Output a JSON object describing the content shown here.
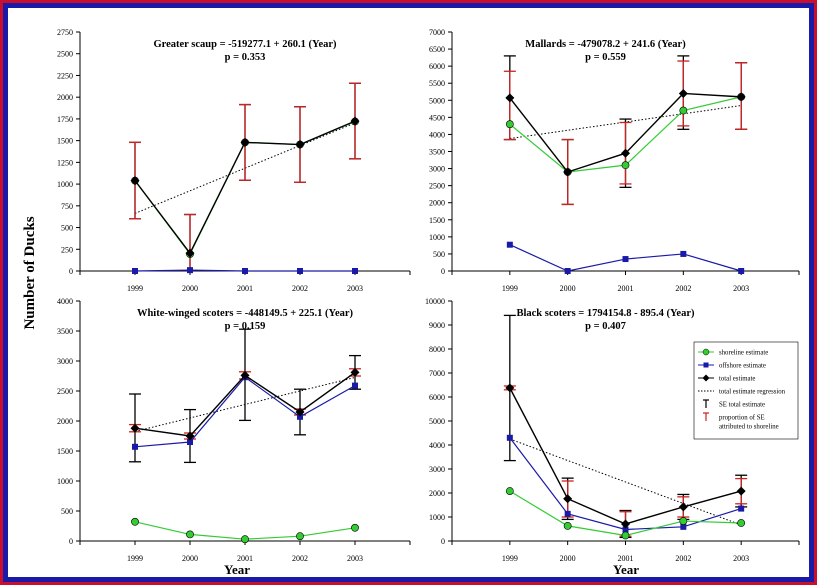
{
  "figure": {
    "ylabel": "Number of Ducks",
    "xlabel_left": "Year",
    "xlabel_right": "Year"
  },
  "legend": {
    "items": [
      {
        "label": "shoreline estimate",
        "kind": "marker-circle",
        "color": "#33cc33"
      },
      {
        "label": "offshore estimate",
        "kind": "marker-square",
        "color": "#1a1aa8"
      },
      {
        "label": "total estimate",
        "kind": "marker-diamond",
        "color": "#000000"
      },
      {
        "label": "total estimate regression",
        "kind": "dotted-line",
        "color": "#000000"
      },
      {
        "label": "SE total estimate",
        "kind": "tee",
        "color": "#000000"
      },
      {
        "label": "proportion of SE",
        "label2": "attributed to shoreline",
        "kind": "tee",
        "color": "#cc2222"
      }
    ]
  },
  "colors": {
    "shoreline": "#33cc33",
    "offshore": "#1a1aa8",
    "total": "#000000",
    "se_shoreline": "#cc2222",
    "se_total": "#000000",
    "frame": "#c8102e",
    "background": "#1a1aa8"
  },
  "chart_data": [
    {
      "type": "line",
      "title": "Greater scaup = -519277.1 + 260.1 (Year)",
      "subtitle": "p = 0.353",
      "x": [
        1999,
        2000,
        2001,
        2002,
        2003
      ],
      "xticks": [
        "1999",
        "2000",
        "2001",
        "2002",
        "2003"
      ],
      "ylim": [
        0,
        2750
      ],
      "yticks": [
        0,
        250,
        500,
        750,
        1000,
        1250,
        1500,
        1750,
        2000,
        2250,
        2500,
        2750
      ],
      "series": [
        {
          "key": "shoreline",
          "values": [
            1040,
            195,
            1480,
            1455,
            1720
          ]
        },
        {
          "key": "offshore",
          "values": [
            0,
            10,
            0,
            0,
            0
          ]
        },
        {
          "key": "total",
          "values": [
            1040,
            205,
            1480,
            1455,
            1725
          ]
        }
      ],
      "se_total": [
        [
          600,
          1480
        ],
        [
          -240,
          650
        ],
        [
          1045,
          1915
        ],
        [
          1020,
          1890
        ],
        [
          1290,
          2160
        ]
      ],
      "se_shoreline": [
        [
          600,
          1480
        ],
        [
          -240,
          650
        ],
        [
          1045,
          1915
        ],
        [
          1020,
          1890
        ],
        [
          1290,
          2160
        ]
      ],
      "regression": {
        "intercept": -519277.1,
        "slope": 260.1
      }
    },
    {
      "type": "line",
      "title": "Mallards = -479078.2 + 241.6 (Year)",
      "subtitle": "p = 0.559",
      "x": [
        1999,
        2000,
        2001,
        2002,
        2003
      ],
      "xticks": [
        "1999",
        "2000",
        "2001",
        "2002",
        "2003"
      ],
      "ylim": [
        0,
        7000
      ],
      "yticks": [
        0,
        500,
        1000,
        1500,
        2000,
        2500,
        3000,
        3500,
        4000,
        4500,
        5000,
        5500,
        6000,
        6500,
        7000
      ],
      "series": [
        {
          "key": "shoreline",
          "values": [
            4300,
            2900,
            3100,
            4700,
            5100
          ]
        },
        {
          "key": "offshore",
          "values": [
            770,
            0,
            350,
            500,
            0
          ]
        },
        {
          "key": "total",
          "values": [
            5070,
            2900,
            3450,
            5200,
            5100
          ]
        }
      ],
      "se_total": [
        [
          3850,
          6300
        ],
        [
          1950,
          3850
        ],
        [
          2450,
          4450
        ],
        [
          4150,
          6300
        ],
        [
          4150,
          6100
        ]
      ],
      "se_shoreline": [
        [
          3850,
          5850
        ],
        [
          1950,
          3850
        ],
        [
          2550,
          4350
        ],
        [
          4250,
          6150
        ],
        [
          4150,
          6100
        ]
      ],
      "regression": {
        "intercept": -479078.2,
        "slope": 241.6
      }
    },
    {
      "type": "line",
      "title": "White-winged scoters = -448149.5 + 225.1 (Year)",
      "subtitle": "p = 0.159",
      "x": [
        1999,
        2000,
        2001,
        2002,
        2003
      ],
      "xticks": [
        "1999",
        "2000",
        "2001",
        "2002",
        "2003"
      ],
      "ylim": [
        0,
        4000
      ],
      "yticks": [
        0,
        500,
        1000,
        1500,
        2000,
        2500,
        3000,
        3500,
        4000
      ],
      "series": [
        {
          "key": "shoreline",
          "values": [
            320,
            110,
            30,
            80,
            220
          ]
        },
        {
          "key": "offshore",
          "values": [
            1570,
            1650,
            2730,
            2070,
            2590
          ]
        },
        {
          "key": "total",
          "values": [
            1880,
            1750,
            2760,
            2150,
            2810
          ]
        }
      ],
      "se_total": [
        [
          1320,
          2450
        ],
        [
          1310,
          2190
        ],
        [
          2010,
          3530
        ],
        [
          1770,
          2530
        ],
        [
          2530,
          3090
        ]
      ],
      "se_shoreline": [
        [
          1820,
          1940
        ],
        [
          1700,
          1800
        ],
        [
          2700,
          2820
        ],
        [
          2100,
          2200
        ],
        [
          2750,
          2870
        ]
      ],
      "regression": {
        "intercept": -448149.5,
        "slope": 225.1
      }
    },
    {
      "type": "line",
      "title": "Black scoters = 1794154.8 - 895.4 (Year)",
      "subtitle": "p = 0.407",
      "x": [
        1999,
        2000,
        2001,
        2002,
        2003
      ],
      "xticks": [
        "1999",
        "2000",
        "2001",
        "2002",
        "2003"
      ],
      "ylim": [
        0,
        10000
      ],
      "yticks": [
        0,
        1000,
        2000,
        3000,
        4000,
        5000,
        6000,
        7000,
        8000,
        9000,
        10000
      ],
      "series": [
        {
          "key": "shoreline",
          "values": [
            2080,
            630,
            230,
            830,
            750
          ]
        },
        {
          "key": "offshore",
          "values": [
            4300,
            1130,
            480,
            590,
            1350
          ]
        },
        {
          "key": "total",
          "values": [
            6380,
            1760,
            710,
            1420,
            2080
          ]
        }
      ],
      "se_total": [
        [
          3350,
          9400
        ],
        [
          900,
          2620
        ],
        [
          150,
          1270
        ],
        [
          900,
          1940
        ],
        [
          1420,
          2740
        ]
      ],
      "se_shoreline": [
        [
          6300,
          6460
        ],
        [
          1000,
          2500
        ],
        [
          200,
          1220
        ],
        [
          1000,
          1840
        ],
        [
          1550,
          2600
        ]
      ],
      "regression": {
        "intercept": 1794154.8,
        "slope": -895.4
      }
    }
  ]
}
